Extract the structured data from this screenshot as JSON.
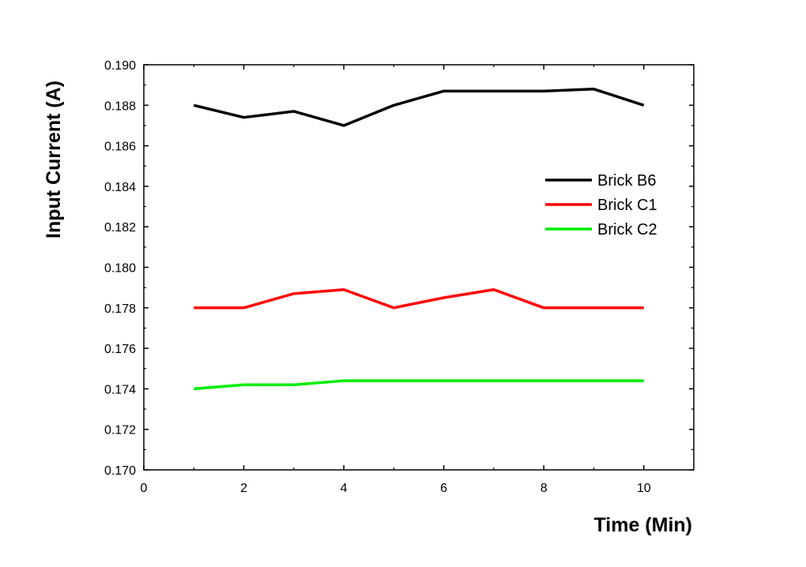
{
  "chart_data": {
    "type": "line",
    "title": "",
    "xlabel": "Time (Min)",
    "ylabel": "Input Current (A)",
    "xlim": [
      0,
      11
    ],
    "ylim": [
      0.17,
      0.19
    ],
    "x_ticks": [
      0,
      2,
      4,
      6,
      8,
      10
    ],
    "x_tick_labels": [
      "0",
      "2",
      "4",
      "6",
      "8",
      "10"
    ],
    "y_ticks": [
      0.17,
      0.172,
      0.174,
      0.176,
      0.178,
      0.18,
      0.182,
      0.184,
      0.186,
      0.188,
      0.19
    ],
    "y_tick_labels": [
      "0.170",
      "0.172",
      "0.174",
      "0.176",
      "0.178",
      "0.180",
      "0.182",
      "0.184",
      "0.186",
      "0.188",
      "0.190"
    ],
    "grid": false,
    "legend_position": "right",
    "x": [
      1,
      2,
      3,
      4,
      5,
      6,
      7,
      8,
      9,
      10
    ],
    "series": [
      {
        "name": "Brick B6",
        "color": "#000000",
        "values": [
          0.188,
          0.1874,
          0.1877,
          0.187,
          0.188,
          0.1887,
          0.1887,
          0.1887,
          0.1888,
          0.188
        ]
      },
      {
        "name": "Brick C1",
        "color": "#ff0000",
        "values": [
          0.178,
          0.178,
          0.1787,
          0.1789,
          0.178,
          0.1785,
          0.1789,
          0.178,
          0.178,
          0.178
        ]
      },
      {
        "name": "Brick C2",
        "color": "#00ee00",
        "values": [
          0.174,
          0.1742,
          0.1742,
          0.1744,
          0.1744,
          0.1744,
          0.1744,
          0.1744,
          0.1744,
          0.1744
        ]
      }
    ]
  }
}
